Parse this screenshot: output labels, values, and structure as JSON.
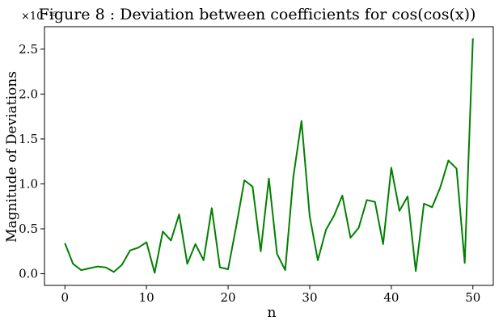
{
  "chart_data": {
    "type": "line",
    "title": "Figure 8 : Deviation between coefficients for cos(cos(x))",
    "xlabel": "n",
    "ylabel": "Magnitude of Deviations",
    "y_scale_label": "×10⁻¹⁵",
    "line_color": "#008000",
    "grid": false,
    "xlim": [
      -2.5,
      52.5
    ],
    "ylim": [
      -0.13,
      2.75
    ],
    "x_ticks": [
      0,
      10,
      20,
      30,
      40,
      50
    ],
    "y_ticks": [
      0.0,
      0.5,
      1.0,
      1.5,
      2.0,
      2.5
    ],
    "x_tick_labels": [
      "0",
      "10",
      "20",
      "30",
      "40",
      "50"
    ],
    "y_tick_labels": [
      "0.0",
      "0.5",
      "1.0",
      "1.5",
      "2.0",
      "2.5"
    ],
    "series": [
      {
        "x": [
          0,
          1,
          2,
          3,
          4,
          5,
          6,
          7,
          8,
          9,
          10,
          11,
          12,
          13,
          14,
          15,
          16,
          17,
          18,
          19,
          20,
          21,
          22,
          23,
          24,
          25,
          26,
          27,
          28,
          29,
          30,
          31,
          32,
          33,
          34,
          35,
          36,
          37,
          38,
          39,
          40,
          41,
          42,
          43,
          44,
          45,
          46,
          47,
          48,
          49,
          50
        ],
        "values": [
          0.34,
          0.11,
          0.04,
          0.06,
          0.08,
          0.07,
          0.02,
          0.1,
          0.26,
          0.29,
          0.35,
          0.01,
          0.47,
          0.37,
          0.66,
          0.11,
          0.33,
          0.15,
          0.73,
          0.07,
          0.05,
          0.53,
          1.04,
          0.97,
          0.25,
          1.06,
          0.22,
          0.04,
          1.08,
          1.7,
          0.64,
          0.15,
          0.49,
          0.65,
          0.87,
          0.4,
          0.51,
          0.82,
          0.8,
          0.33,
          1.18,
          0.7,
          0.86,
          0.03,
          0.78,
          0.74,
          0.96,
          1.26,
          1.17,
          0.12,
          2.62
        ]
      }
    ]
  }
}
